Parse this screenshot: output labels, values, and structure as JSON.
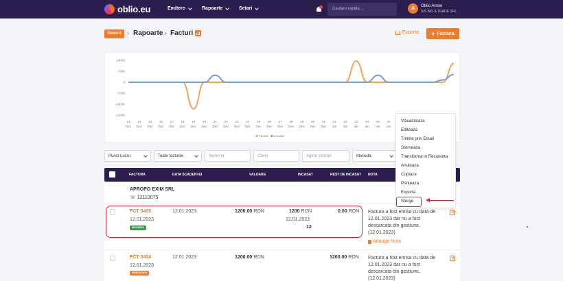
{
  "nav": {
    "logo": "oblio.eu",
    "menus": [
      "Emitere",
      "Rapoarte",
      "Setari"
    ],
    "search_placeholder": "Cautare rapida ...",
    "avatar_letter": "A",
    "user_name": "Oblio Arrow",
    "user_company": "SIS BIO & TRADE SRL"
  },
  "breadcrumb": {
    "badge": "Stocuri",
    "items": [
      "Rapoarte",
      "Facturi"
    ]
  },
  "actions": {
    "export": "Exporta",
    "add": "Factura"
  },
  "chart_data": {
    "type": "line",
    "yticks": [
      "14000",
      "7000",
      "0",
      "-7000",
      "-14000",
      "-21000"
    ],
    "ylim": [
      -21000,
      14000
    ],
    "x": [
      "13 Dec",
      "14 Dec",
      "15 Dec",
      "16 Dec",
      "17 Dec",
      "18 Dec",
      "19 Dec",
      "20 Dec",
      "21 Dec",
      "22 Dec",
      "23 Dec",
      "24 Dec",
      "25 Dec",
      "26 Dec",
      "27 Dec",
      "28 Dec",
      "29 Dec",
      "30 Dec",
      "31 Dec",
      "01 Ian",
      "02 Ian",
      "03 Ian",
      "04 Ian",
      "05 Ian",
      "06 Ian",
      "07 Ian",
      "08 Ian",
      "09 Ian",
      "10 Ian",
      "11 Ian",
      "12 Ian"
    ],
    "series": [
      {
        "name": "Facturi",
        "color": "#f5a257",
        "values": [
          0,
          0,
          0,
          0,
          0,
          0,
          -17000,
          0,
          0,
          0,
          0,
          0,
          0,
          0,
          0,
          0,
          0,
          0,
          0,
          0,
          0,
          13500,
          0,
          0,
          0,
          0,
          0,
          0,
          0,
          0,
          12000
        ]
      },
      {
        "name": "Incasat",
        "color": "#6f9fd8",
        "values": [
          0,
          0,
          0,
          0,
          0,
          0,
          0,
          0,
          4500,
          0,
          0,
          0,
          0,
          0,
          0,
          0,
          0,
          0,
          0,
          0,
          0,
          0,
          0,
          4500,
          0,
          0,
          0,
          0,
          0,
          1500,
          5000
        ]
      }
    ],
    "grid": false,
    "legend": "bottom"
  },
  "filters": {
    "punct_lucru": "Punct Lucru",
    "tip_facturi": "Toate facturile",
    "serie_nr": "Serie+nr",
    "client": "Client",
    "agent": "Agent vanzari",
    "moneda": "Moneda"
  },
  "table": {
    "columns": [
      "Factura",
      "Data scadentei",
      "Valoare",
      "Incasat",
      "Rest de incasat",
      "Nota"
    ],
    "group": {
      "client": "APROPO EXIM SRL",
      "phone": "12110075"
    },
    "rows": [
      {
        "number": "FCT 0435",
        "date": "12.01.2023",
        "status": "incasata",
        "due": "12.01.2023",
        "value": "1200.00",
        "value_currency": "RON",
        "paid": "1200",
        "paid_currency": "RON",
        "paid_date": "12.01.2023",
        "paid_ref": "12",
        "rest": "0.00",
        "rest_currency": "RON",
        "note": "Factura a fost emisa cu data de 12.01.2023 dar nu a fost descarcata din gestiune. (12.01.2023)",
        "note_link": "Adauga Nota"
      },
      {
        "number": "FCT 0434",
        "date": "12.01.2023",
        "status": "neincasata",
        "due": "12.01.2023",
        "value": "1200.00",
        "value_currency": "RON",
        "rest": "1200.00",
        "rest_currency": "RON",
        "note": "Factura a fost emisa cu data de 12.01.2023 dar nu a fost descarcata din gestiune. (12.01.2023)"
      }
    ]
  },
  "dropdown": {
    "items": [
      "Vizualizeaza",
      "Editeaza",
      "Trimite prin Email",
      "Storneaza",
      "Transforma in Recurenta",
      "Anuleaza",
      "Copiaza",
      "Printeaza",
      "Exporta",
      "Sterge"
    ]
  },
  "colors": {
    "accent": "#f07b2a",
    "nav": "#2b1d4e",
    "highlight": "#e2222f",
    "paid": "#28a745",
    "unpaid": "#f07b2a"
  }
}
